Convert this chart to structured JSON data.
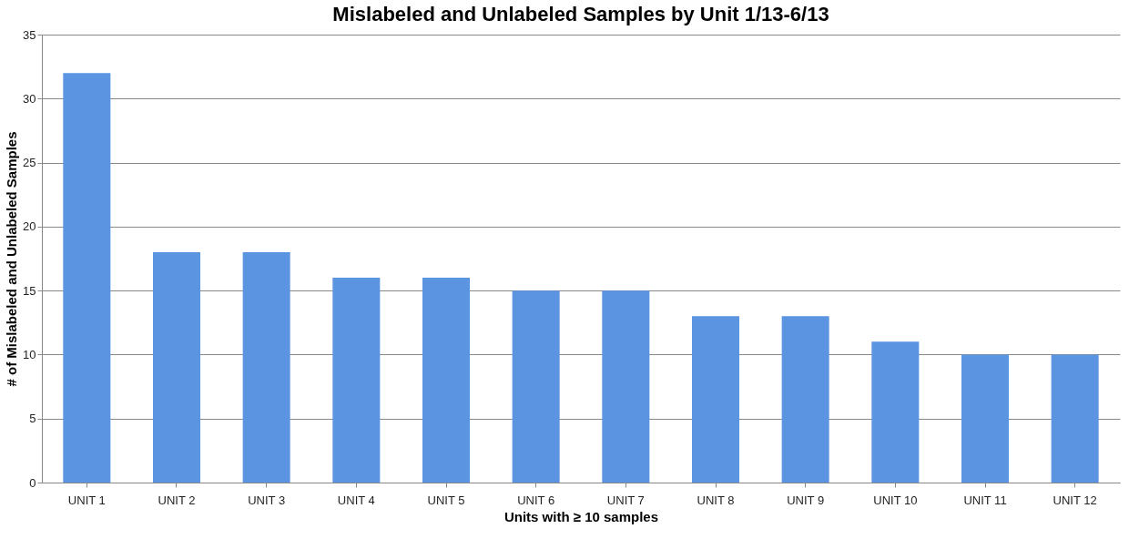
{
  "chart_data": {
    "type": "bar",
    "title": "Mislabeled and Unlabeled Samples by Unit 1/13-6/13",
    "xlabel": "Units with ≥ 10 samples",
    "ylabel": "# of Mislabeled and Unlabeled Samples",
    "categories": [
      "UNIT 1",
      "UNIT 2",
      "UNIT 3",
      "UNIT 4",
      "UNIT 5",
      "UNIT 6",
      "UNIT 7",
      "UNIT 8",
      "UNIT 9",
      "UNIT 10",
      "UNIT 11",
      "UNIT 12"
    ],
    "values": [
      32,
      18,
      18,
      16,
      16,
      15,
      15,
      13,
      13,
      11,
      10,
      10
    ],
    "color": "#5b94e0",
    "ylim": [
      0,
      35
    ],
    "yticks": [
      0,
      5,
      10,
      15,
      20,
      25,
      30,
      35
    ],
    "grid": "y"
  }
}
